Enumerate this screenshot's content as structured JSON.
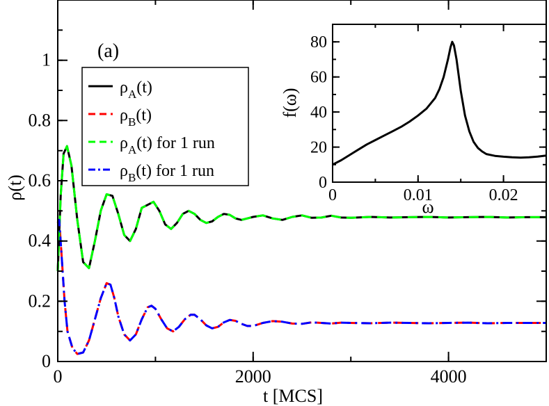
{
  "chart_data": [
    {
      "type": "line",
      "panel_label": "(a)",
      "xlabel": "t [MCS]",
      "ylabel": "ρ(t)",
      "xlim": [
        0,
        5000
      ],
      "ylim": [
        0,
        1.2
      ],
      "x_ticks": [
        0,
        2000,
        4000
      ],
      "x_tick_labels": [
        "0",
        "2000",
        "4000"
      ],
      "y_ticks": [
        0,
        0.2,
        0.4,
        0.6,
        0.8,
        1.0
      ],
      "y_tick_labels": [
        "0",
        "0.2",
        "0.4",
        "0.6",
        "0.8",
        "1"
      ],
      "grid": false,
      "legend_position": "upper-left",
      "legend": [
        {
          "base": "ρ",
          "sub": "A",
          "suffix": "(t)",
          "color": "#000000",
          "dash": "solid"
        },
        {
          "base": "ρ",
          "sub": "B",
          "suffix": "(t)",
          "color": "#ff0000",
          "dash": "dashed"
        },
        {
          "base": "ρ",
          "sub": "A",
          "suffix": "(t) for 1 run",
          "color": "#00ff00",
          "dash": "dashed"
        },
        {
          "base": "ρ",
          "sub": "B",
          "suffix": "(t) for 1 run",
          "color": "#0000ff",
          "dash": "dash-dot"
        }
      ],
      "series": [
        {
          "name": "ρA(t)",
          "color": "#000000",
          "dash": "solid",
          "x": [
            0,
            30,
            60,
            95,
            140,
            200,
            260,
            320,
            380,
            440,
            500,
            560,
            620,
            680,
            740,
            800,
            860,
            920,
            980,
            1040,
            1100,
            1160,
            1220,
            1280,
            1340,
            1400,
            1460,
            1520,
            1580,
            1640,
            1700,
            1760,
            1820,
            1880,
            1940,
            2000,
            2100,
            2200,
            2300,
            2400,
            2500,
            2600,
            2700,
            2800,
            2900,
            3000,
            3200,
            3400,
            3600,
            3800,
            4000,
            4200,
            4400,
            4600,
            4800,
            5000
          ],
          "y": [
            0.3,
            0.55,
            0.69,
            0.715,
            0.65,
            0.47,
            0.33,
            0.31,
            0.4,
            0.5,
            0.555,
            0.55,
            0.49,
            0.42,
            0.4,
            0.44,
            0.51,
            0.52,
            0.53,
            0.5,
            0.455,
            0.44,
            0.46,
            0.49,
            0.5,
            0.49,
            0.47,
            0.46,
            0.465,
            0.48,
            0.49,
            0.487,
            0.475,
            0.47,
            0.475,
            0.48,
            0.485,
            0.475,
            0.47,
            0.48,
            0.485,
            0.477,
            0.478,
            0.484,
            0.478,
            0.477,
            0.48,
            0.478,
            0.479,
            0.48,
            0.478,
            0.479,
            0.48,
            0.478,
            0.479,
            0.479
          ]
        },
        {
          "name": "ρB(t)",
          "color": "#ff0000",
          "dash": "dashed",
          "x": [
            0,
            15,
            40,
            70,
            100,
            150,
            200,
            260,
            320,
            380,
            440,
            500,
            540,
            580,
            620,
            680,
            740,
            800,
            860,
            920,
            960,
            1000,
            1060,
            1120,
            1180,
            1240,
            1300,
            1360,
            1400,
            1460,
            1520,
            1580,
            1640,
            1700,
            1760,
            1820,
            1880,
            1940,
            2000,
            2100,
            2200,
            2300,
            2400,
            2500,
            2600,
            2700,
            2800,
            2900,
            3000,
            3200,
            3400,
            3600,
            3800,
            4000,
            4200,
            4400,
            4600,
            4800,
            5000
          ],
          "y": [
            0.46,
            0.47,
            0.35,
            0.2,
            0.1,
            0.045,
            0.025,
            0.03,
            0.07,
            0.14,
            0.21,
            0.26,
            0.255,
            0.21,
            0.15,
            0.09,
            0.07,
            0.09,
            0.14,
            0.18,
            0.185,
            0.175,
            0.14,
            0.11,
            0.1,
            0.115,
            0.14,
            0.155,
            0.155,
            0.14,
            0.12,
            0.11,
            0.115,
            0.13,
            0.138,
            0.135,
            0.125,
            0.118,
            0.118,
            0.128,
            0.134,
            0.132,
            0.126,
            0.125,
            0.13,
            0.128,
            0.126,
            0.129,
            0.128,
            0.127,
            0.129,
            0.128,
            0.127,
            0.128,
            0.129,
            0.127,
            0.128,
            0.128,
            0.128
          ]
        },
        {
          "name": "ρA(t) for 1 run",
          "color": "#00ff00",
          "dash": "dashed",
          "x": [
            0,
            30,
            60,
            95,
            140,
            200,
            260,
            320,
            380,
            440,
            500,
            560,
            620,
            680,
            740,
            800,
            860,
            920,
            980,
            1040,
            1100,
            1160,
            1220,
            1280,
            1340,
            1400,
            1460,
            1520,
            1580,
            1640,
            1700,
            1760,
            1820,
            1880,
            1940,
            2000,
            2100,
            2200,
            2300,
            2400,
            2500,
            2600,
            2700,
            2800,
            2900,
            3000,
            3200,
            3400,
            3600,
            3800,
            4000,
            4200,
            4400,
            4600,
            4800,
            5000
          ],
          "y": [
            0.3,
            0.55,
            0.69,
            0.715,
            0.65,
            0.47,
            0.33,
            0.31,
            0.4,
            0.5,
            0.555,
            0.55,
            0.49,
            0.42,
            0.4,
            0.44,
            0.51,
            0.52,
            0.53,
            0.5,
            0.455,
            0.44,
            0.46,
            0.49,
            0.5,
            0.49,
            0.47,
            0.46,
            0.465,
            0.48,
            0.49,
            0.487,
            0.475,
            0.47,
            0.475,
            0.48,
            0.485,
            0.475,
            0.47,
            0.48,
            0.485,
            0.477,
            0.478,
            0.484,
            0.478,
            0.477,
            0.48,
            0.478,
            0.479,
            0.48,
            0.478,
            0.479,
            0.48,
            0.478,
            0.479,
            0.479
          ]
        },
        {
          "name": "ρB(t) for 1 run",
          "color": "#0000ff",
          "dash": "dash-dot",
          "x": [
            0,
            15,
            40,
            70,
            100,
            150,
            200,
            260,
            320,
            380,
            440,
            500,
            540,
            580,
            620,
            680,
            740,
            800,
            860,
            920,
            960,
            1000,
            1060,
            1120,
            1180,
            1240,
            1300,
            1360,
            1400,
            1460,
            1520,
            1580,
            1640,
            1700,
            1760,
            1820,
            1880,
            1940,
            2000,
            2100,
            2200,
            2300,
            2400,
            2500,
            2600,
            2700,
            2800,
            2900,
            3000,
            3200,
            3400,
            3600,
            3800,
            4000,
            4200,
            4400,
            4600,
            4800,
            5000
          ],
          "y": [
            0.46,
            0.47,
            0.35,
            0.2,
            0.1,
            0.045,
            0.025,
            0.03,
            0.07,
            0.14,
            0.21,
            0.26,
            0.255,
            0.21,
            0.15,
            0.09,
            0.07,
            0.09,
            0.14,
            0.18,
            0.185,
            0.175,
            0.14,
            0.11,
            0.1,
            0.115,
            0.14,
            0.155,
            0.155,
            0.14,
            0.12,
            0.11,
            0.115,
            0.13,
            0.138,
            0.135,
            0.125,
            0.118,
            0.118,
            0.128,
            0.134,
            0.132,
            0.126,
            0.125,
            0.13,
            0.128,
            0.126,
            0.129,
            0.128,
            0.127,
            0.129,
            0.128,
            0.127,
            0.128,
            0.129,
            0.127,
            0.128,
            0.128,
            0.128
          ]
        }
      ]
    },
    {
      "type": "line",
      "inset": true,
      "xlabel": "ω",
      "ylabel": "f(ω)",
      "xlim": [
        0,
        0.025
      ],
      "ylim": [
        0,
        90
      ],
      "x_ticks": [
        0,
        0.01,
        0.02
      ],
      "x_tick_labels": [
        "0",
        "0.01",
        "0.02"
      ],
      "y_ticks": [
        0,
        20,
        40,
        60,
        80
      ],
      "y_tick_labels": [
        "0",
        "20",
        "40",
        "60",
        "80"
      ],
      "grid": false,
      "series": [
        {
          "name": "f(ω)",
          "color": "#000000",
          "dash": "solid",
          "x": [
            0,
            0.001,
            0.002,
            0.003,
            0.004,
            0.005,
            0.006,
            0.007,
            0.008,
            0.009,
            0.01,
            0.011,
            0.012,
            0.0125,
            0.013,
            0.0135,
            0.0138,
            0.014,
            0.0142,
            0.0145,
            0.015,
            0.0155,
            0.016,
            0.0165,
            0.017,
            0.0175,
            0.018,
            0.019,
            0.02,
            0.021,
            0.022,
            0.023,
            0.024,
            0.025
          ],
          "y": [
            10,
            12.5,
            15.5,
            18.5,
            21.5,
            24,
            26.5,
            29,
            31.5,
            34.5,
            38,
            42,
            48,
            53,
            60,
            70,
            77,
            80,
            78,
            70,
            52,
            38,
            29,
            23,
            19.5,
            17.5,
            16,
            15,
            14.5,
            14.2,
            14,
            14.2,
            14.6,
            15.2
          ]
        }
      ]
    }
  ]
}
